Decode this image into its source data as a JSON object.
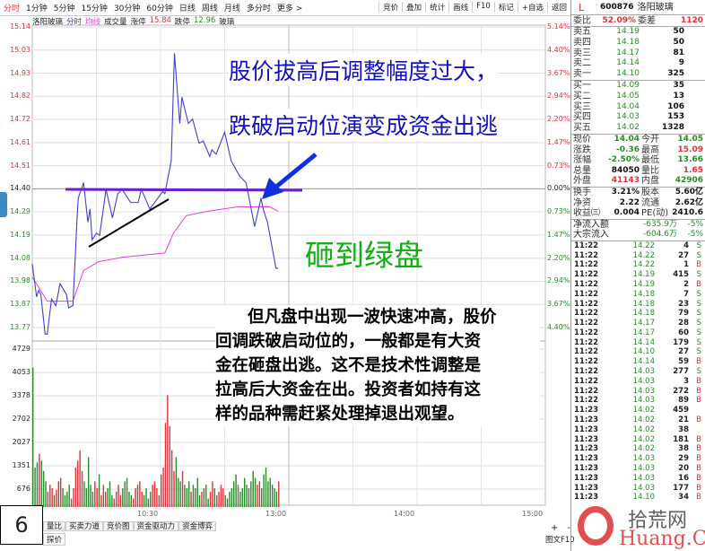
{
  "toolbar": {
    "tabs": [
      "分时",
      "1分钟",
      "5分钟",
      "15分钟",
      "30分钟",
      "60分钟",
      "日线",
      "周线",
      "月线",
      "多分时",
      "更多 >"
    ],
    "buttons": [
      "竞价",
      "叠加",
      "统计",
      "画线",
      "F10",
      "标记",
      "+自选",
      "返回"
    ]
  },
  "header": {
    "name": "洛阳玻璃",
    "fenshi": "分时",
    "junxian": "均线",
    "volume": "成交量",
    "limit_up_label": "涨停",
    "limit_up": "15.84",
    "limit_down_label": "跌停",
    "limit_down": "12.96",
    "sector": "玻璃"
  },
  "colors": {
    "price_line": "#4040d0",
    "avg_line": "#e040e0",
    "up": "#e0303a",
    "down": "#2a8a2a",
    "annotation_blue": "#1010c0",
    "annotation_green": "#10b010"
  },
  "chart_data": {
    "type": "line",
    "price_ticks": [
      "15.14",
      "15.03",
      "14.93",
      "14.82",
      "14.72",
      "14.61",
      "14.51",
      "14.40",
      "14.29",
      "14.19",
      "14.08",
      "13.98",
      "13.87",
      "13.77"
    ],
    "pct_ticks": [
      "5.14%",
      "4.40%",
      "3.67%",
      "2.94%",
      "2.20%",
      "1.47%",
      "0.73%",
      "0.00%",
      "0.73%",
      "1.47%",
      "2.20%",
      "2.94%",
      "3.67%",
      "4.40%"
    ],
    "volume_ticks": [
      "4729",
      "4053",
      "3378",
      "2702",
      "2027",
      "1351",
      "676"
    ],
    "time_ticks": [
      "10:30",
      "13:00",
      "14:00",
      "15:00"
    ],
    "prev_close": 14.4,
    "price": [
      [
        0,
        14.06
      ],
      [
        2,
        13.91
      ],
      [
        3,
        13.94
      ],
      [
        4,
        13.92
      ],
      [
        6,
        13.74
      ],
      [
        7,
        13.74
      ],
      [
        9,
        13.9
      ],
      [
        11,
        13.87
      ],
      [
        13,
        13.97
      ],
      [
        16,
        13.92
      ],
      [
        17,
        13.86
      ],
      [
        19,
        13.87
      ],
      [
        21,
        14.28
      ],
      [
        21.5,
        14.36
      ],
      [
        24,
        14.43
      ],
      [
        26,
        14.25
      ],
      [
        27,
        14.31
      ],
      [
        28,
        14.17
      ],
      [
        30,
        14.2
      ],
      [
        31.5,
        14.19
      ],
      [
        34.5,
        14.4
      ],
      [
        37.5,
        14.27
      ],
      [
        40,
        14.38
      ],
      [
        42,
        14.4
      ],
      [
        46,
        14.34
      ],
      [
        49.5,
        14.34
      ],
      [
        51,
        14.4
      ],
      [
        55,
        14.31
      ],
      [
        58,
        14.35
      ],
      [
        61,
        14.39
      ],
      [
        62,
        14.38
      ],
      [
        65,
        14.53
      ],
      [
        66.5,
        15.02
      ],
      [
        69,
        14.7
      ],
      [
        70,
        14.82
      ],
      [
        73,
        14.7
      ],
      [
        75,
        14.72
      ],
      [
        78,
        14.61
      ],
      [
        80,
        14.62
      ],
      [
        83,
        14.55
      ],
      [
        84,
        14.58
      ],
      [
        86,
        14.56
      ],
      [
        90,
        14.66
      ],
      [
        93,
        14.53
      ],
      [
        97,
        14.46
      ],
      [
        100,
        14.43
      ],
      [
        104,
        14.23
      ],
      [
        107,
        14.36
      ],
      [
        108,
        14.31
      ],
      [
        110,
        14.25
      ],
      [
        114,
        14.04
      ],
      [
        115,
        14.04
      ]
    ],
    "avg_price": [
      [
        0,
        14.0
      ],
      [
        7,
        13.89
      ],
      [
        19,
        13.89
      ],
      [
        24,
        14.03
      ],
      [
        31,
        14.07
      ],
      [
        42,
        14.09
      ],
      [
        62,
        14.11
      ],
      [
        66,
        14.2
      ],
      [
        72,
        14.28
      ],
      [
        82,
        14.3
      ],
      [
        96,
        14.32
      ],
      [
        111,
        14.32
      ],
      [
        115,
        14.3
      ]
    ],
    "volume": [
      4200,
      1300,
      1450,
      1700,
      1500,
      1200,
      900,
      600,
      800,
      700,
      500,
      650,
      900,
      1000,
      700,
      500,
      600,
      800,
      400,
      700,
      1300,
      1500,
      1800,
      1200,
      900,
      700,
      1600,
      800,
      600,
      900,
      700,
      1100,
      500,
      800,
      600,
      700,
      900,
      500,
      400,
      600,
      800,
      500,
      700,
      900,
      1000,
      600,
      500,
      400,
      700,
      800,
      900,
      600,
      500,
      700,
      400,
      600,
      800,
      900,
      700,
      500,
      1100,
      1300,
      2600,
      3400,
      2500,
      1800,
      1200,
      1600,
      1000,
      900,
      1200,
      800,
      700,
      900,
      600,
      800,
      700,
      1000,
      500,
      600,
      700,
      800,
      400,
      600,
      900,
      700,
      500,
      600,
      800,
      700,
      500,
      400,
      600,
      700,
      900,
      1100,
      800,
      600,
      700,
      1000,
      800,
      700,
      900,
      1200,
      1000,
      800,
      900,
      700,
      1100,
      1300,
      900,
      1000,
      800,
      700,
      600,
      900
    ]
  },
  "annotations": {
    "line1": "股价拔高后调整幅度过大，",
    "line2": "跌破启动位演变成资金出逃",
    "green": "砸到绿盘",
    "para": [
      "但凡盘中出现一波快速冲高，股价",
      "回调跌破启动位的，一般都是有大资",
      "金在砸盘出逃。这不是技术性调整是",
      "拉高后大资金在出。投资者如持有这",
      "样的品种需赶紧处理掉退出观望。"
    ],
    "page_number": "6"
  },
  "bottom": {
    "tabs": [
      "量比",
      "买卖力道",
      "竞价图",
      "资金驱动力",
      "资金博弈"
    ],
    "sub_tab": "探价",
    "plus": "+",
    "minus": "-",
    "f10": "图文F10"
  },
  "quote": {
    "flag": "L",
    "code": "600876",
    "name": "洛阳玻璃",
    "weibi_label": "委比",
    "weibi": "52.09%",
    "weicha_label": "委差",
    "weicha": "1120",
    "asks": [
      [
        "卖五",
        "14.19",
        "50"
      ],
      [
        "卖四",
        "14.18",
        "50"
      ],
      [
        "卖三",
        "14.17",
        "81"
      ],
      [
        "卖二",
        "14.14",
        "9"
      ],
      [
        "卖一",
        "14.10",
        "325"
      ]
    ],
    "bids": [
      [
        "买一",
        "14.09",
        "35"
      ],
      [
        "买二",
        "14.05",
        "13"
      ],
      [
        "买三",
        "14.04",
        "106"
      ],
      [
        "买四",
        "14.03",
        "153"
      ],
      [
        "买五",
        "14.02",
        "1328"
      ]
    ],
    "stats": [
      [
        "现价",
        "14.04",
        "今开",
        "14.05",
        "g",
        "g"
      ],
      [
        "涨跌",
        "-0.36",
        "最高",
        "15.09",
        "g",
        "r"
      ],
      [
        "涨幅",
        "-2.50%",
        "最低",
        "13.66",
        "g",
        "g"
      ],
      [
        "总量",
        "84050",
        "量比",
        "1.65",
        "b",
        "r"
      ],
      [
        "外盘",
        "41143",
        "内盘",
        "42906",
        "r",
        "g"
      ]
    ],
    "stats2": [
      [
        "换手",
        "3.21%",
        "股本",
        "5.60亿"
      ],
      [
        "净资",
        "2.22",
        "流通",
        "2.62亿"
      ],
      [
        "收益㈢",
        "0.004",
        "PE(动)",
        "2410.6"
      ]
    ],
    "flows": [
      [
        "净流入额",
        "-635.9万",
        "-5%"
      ],
      [
        "大宗流入",
        "-604.6万",
        "-5%"
      ]
    ],
    "trades": [
      [
        "11:22",
        "14.22",
        "4",
        "S"
      ],
      [
        "11:22",
        "14.22",
        "27",
        "S"
      ],
      [
        "11:22",
        "14.22",
        "1",
        "B"
      ],
      [
        "11:22",
        "14.19",
        "415",
        "S"
      ],
      [
        "11:22",
        "14.19",
        "2",
        "B"
      ],
      [
        "11:22",
        "14.18",
        "7",
        "S"
      ],
      [
        "11:22",
        "14.18",
        "23",
        "S"
      ],
      [
        "11:22",
        "14.18",
        "79",
        "S"
      ],
      [
        "11:22",
        "14.17",
        "28",
        "S"
      ],
      [
        "11:22",
        "14.17",
        "60",
        "S"
      ],
      [
        "11:22",
        "14.14",
        "179",
        "S"
      ],
      [
        "11:22",
        "14.10",
        "27",
        "S"
      ],
      [
        "11:22",
        "14.14",
        "59",
        "B"
      ],
      [
        "11:22",
        "14.03",
        "277",
        "S"
      ],
      [
        "11:22",
        "14.03",
        "3",
        "B"
      ],
      [
        "11:22",
        "14.03",
        "272",
        "B"
      ],
      [
        "11:22",
        "14.03",
        "89",
        "B"
      ],
      [
        "11:23",
        "14.02",
        "459",
        ""
      ],
      [
        "11:23",
        "14.02",
        "21",
        "B"
      ],
      [
        "11:23",
        "14.02",
        "38",
        ""
      ],
      [
        "11:23",
        "14.02",
        "181",
        "B"
      ],
      [
        "11:23",
        "14.02",
        "38",
        "B"
      ],
      [
        "11:23",
        "14.03",
        "29",
        "B"
      ],
      [
        "11:23",
        "14.03",
        "20",
        "B"
      ],
      [
        "11:23",
        "14.03",
        "16",
        "B"
      ],
      [
        "11:23",
        "14.03",
        "177",
        "B"
      ],
      [
        "11:23",
        "14.10",
        "34",
        "B"
      ]
    ]
  },
  "watermark": {
    "cn": "拾荒网",
    "en": "Huang.CN"
  }
}
